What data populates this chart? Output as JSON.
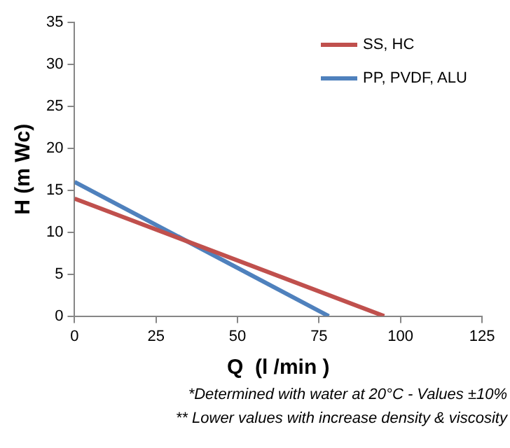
{
  "chart_data": {
    "type": "line",
    "xlabel": "Q  (l /min )",
    "ylabel": "H (m Wc)",
    "series": [
      {
        "name": "SS, HC",
        "color": "#c0504d",
        "x": [
          0,
          95
        ],
        "values": [
          14,
          0
        ]
      },
      {
        "name": "PP, PVDF, ALU",
        "color": "#4f81bd",
        "x": [
          0,
          78
        ],
        "values": [
          16,
          0
        ]
      }
    ],
    "xlim": [
      0,
      125
    ],
    "xticks": [
      0,
      25,
      50,
      75,
      100,
      125
    ],
    "ylim": [
      0,
      35
    ],
    "yticks": [
      0,
      5,
      10,
      15,
      20,
      25,
      30,
      35
    ],
    "grid": false,
    "legend": "top right",
    "marker": "none",
    "line_style": "solid",
    "annotations": [
      "*Determined with water at 20°C - Values ±10%",
      "** Lower values  with increase density & viscosity"
    ]
  }
}
